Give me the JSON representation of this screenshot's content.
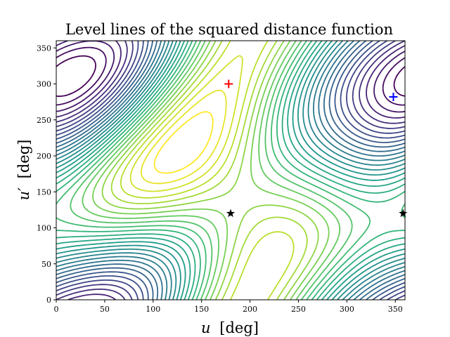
{
  "chart_data": {
    "type": "contour",
    "title": "Level lines of the squared distance function",
    "xlabel_var": "u",
    "xlabel_unit": "[deg]",
    "ylabel_var": "u′",
    "ylabel_unit": "[deg]",
    "xlim": [
      0,
      360
    ],
    "ylim": [
      0,
      360
    ],
    "xticks": [
      0,
      50,
      100,
      150,
      200,
      250,
      300,
      350
    ],
    "yticks": [
      0,
      50,
      100,
      150,
      200,
      250,
      300,
      350
    ],
    "grid": false,
    "colormap": "viridis",
    "num_levels": 30,
    "markers": [
      {
        "name": "max-red-plus",
        "symbol": "plus",
        "color": "#ff0000",
        "x": 178,
        "y": 300
      },
      {
        "name": "min-blue-plus",
        "symbol": "plus",
        "color": "#0000ff",
        "x": 348,
        "y": 282
      },
      {
        "name": "saddle-star-1",
        "symbol": "star",
        "color": "#000000",
        "x": 180,
        "y": 120
      },
      {
        "name": "saddle-star-2",
        "symbol": "star",
        "color": "#000000",
        "x": 358,
        "y": 120
      }
    ]
  }
}
